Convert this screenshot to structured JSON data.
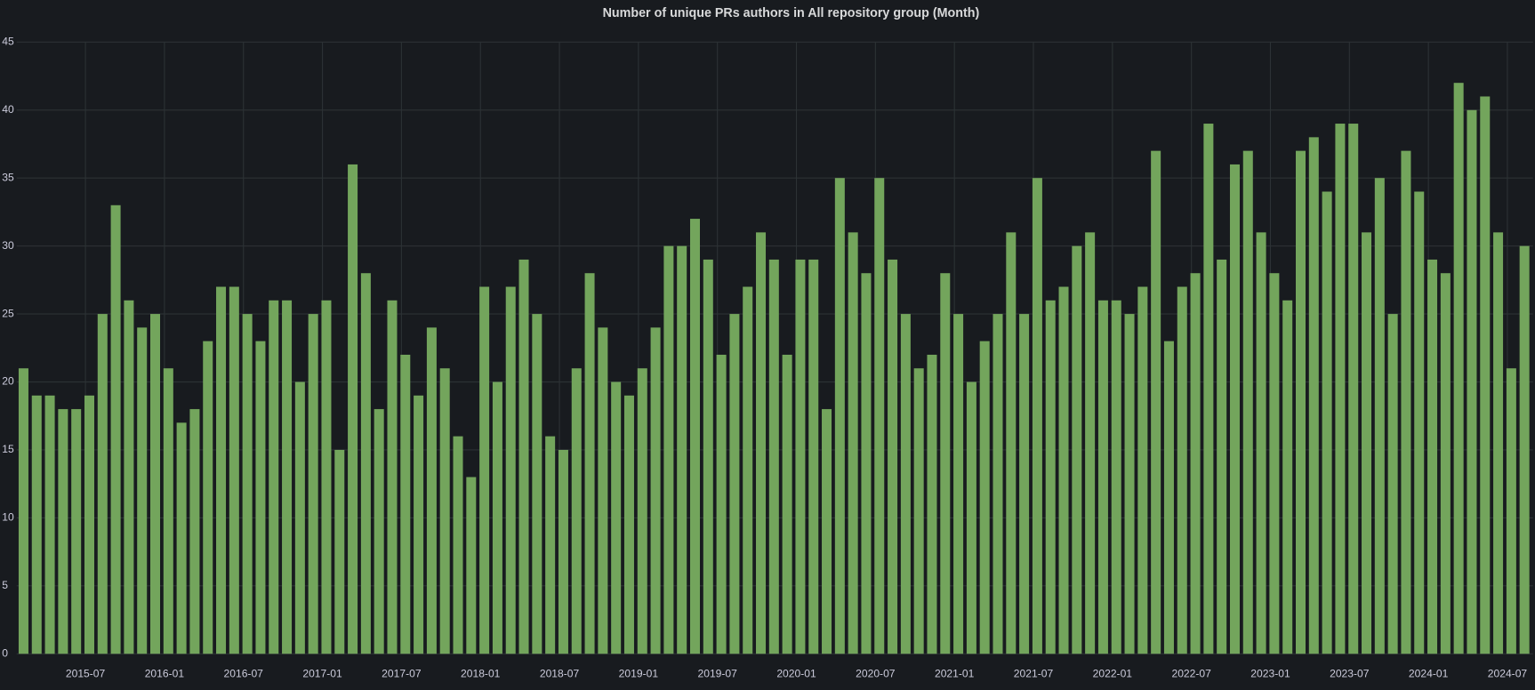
{
  "chart_data": {
    "type": "bar",
    "title": "Number of unique PRs authors in All repository group (Month)",
    "categories": [
      null,
      null,
      null,
      null,
      null,
      "2015-07",
      null,
      null,
      null,
      null,
      null,
      "2016-01",
      null,
      null,
      null,
      null,
      null,
      "2016-07",
      null,
      null,
      null,
      null,
      null,
      "2017-01",
      null,
      null,
      null,
      null,
      null,
      "2017-07",
      null,
      null,
      null,
      null,
      null,
      "2018-01",
      null,
      null,
      null,
      null,
      null,
      "2018-07",
      null,
      null,
      null,
      null,
      null,
      "2019-01",
      null,
      null,
      null,
      null,
      null,
      "2019-07",
      null,
      null,
      null,
      null,
      null,
      "2020-01",
      null,
      null,
      null,
      null,
      null,
      "2020-07",
      null,
      null,
      null,
      null,
      null,
      "2021-01",
      null,
      null,
      null,
      null,
      null,
      "2021-07",
      null,
      null,
      null,
      null,
      null,
      "2022-01",
      null,
      null,
      null,
      null,
      null,
      "2022-07",
      null,
      null,
      null,
      null,
      null,
      "2023-01",
      null,
      null,
      null,
      null,
      null,
      "2023-07",
      null,
      null,
      null,
      null,
      null,
      "2024-01",
      null,
      null,
      null,
      null,
      null,
      "2024-07",
      null
    ],
    "values": [
      21,
      19,
      19,
      18,
      18,
      19,
      25,
      33,
      26,
      24,
      25,
      21,
      17,
      18,
      23,
      27,
      27,
      25,
      23,
      26,
      26,
      20,
      25,
      26,
      15,
      36,
      28,
      18,
      26,
      22,
      19,
      24,
      21,
      16,
      13,
      27,
      20,
      27,
      29,
      25,
      16,
      15,
      21,
      28,
      24,
      20,
      19,
      21,
      24,
      30,
      30,
      32,
      29,
      22,
      25,
      27,
      31,
      29,
      22,
      29,
      29,
      18,
      35,
      31,
      28,
      35,
      29,
      25,
      21,
      22,
      28,
      25,
      20,
      23,
      25,
      31,
      25,
      35,
      26,
      27,
      30,
      31,
      26,
      26,
      25,
      27,
      37,
      23,
      27,
      28,
      39,
      29,
      36,
      37,
      31,
      28,
      26,
      37,
      38,
      34,
      39,
      39,
      31,
      35,
      25,
      37,
      34,
      29,
      28,
      42,
      40,
      41,
      31,
      21,
      30
    ],
    "color": "#73a55c",
    "ylim": [
      0,
      45
    ],
    "yticks": [
      0,
      5,
      10,
      15,
      20,
      25,
      30,
      35,
      40,
      45
    ],
    "grid": true
  }
}
